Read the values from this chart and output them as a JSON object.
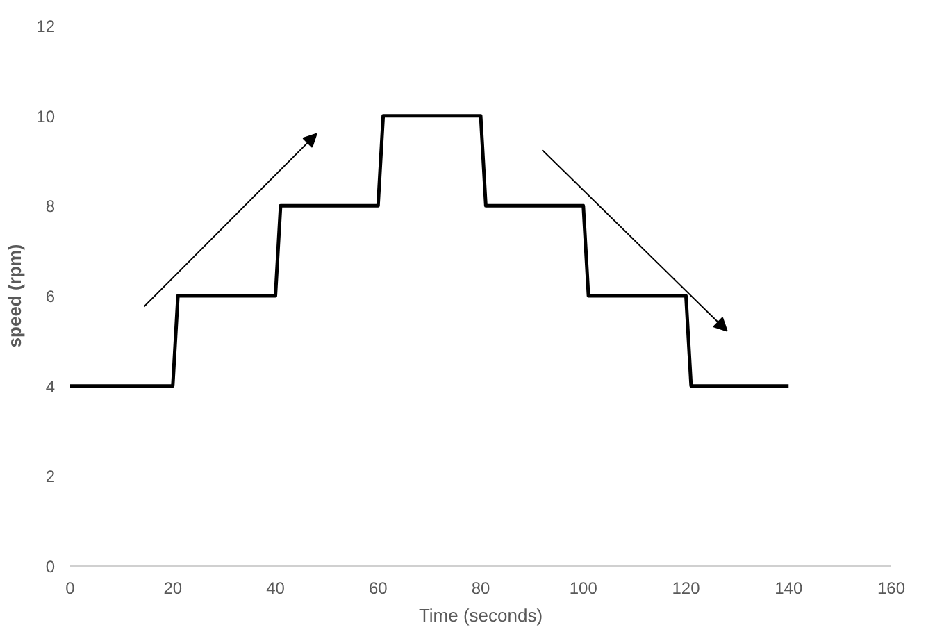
{
  "chart_data": {
    "type": "line",
    "xlabel": "Time (seconds)",
    "ylabel": "speed (rpm)",
    "x": [
      0,
      20,
      21,
      40,
      41,
      60,
      61,
      80,
      81,
      100,
      101,
      120,
      121,
      140
    ],
    "series": [
      {
        "color": "#000000",
        "values": [
          4,
          4,
          6,
          6,
          8,
          8,
          10,
          10,
          8,
          8,
          6,
          6,
          4,
          4
        ]
      }
    ],
    "xlim": [
      0,
      160
    ],
    "xticks": [
      0,
      20,
      40,
      60,
      80,
      100,
      120,
      140,
      160
    ],
    "ylim": [
      0,
      12
    ],
    "yticks": [
      0,
      2,
      4,
      6,
      8,
      10,
      12
    ],
    "grid": false,
    "marker": "none",
    "line_style": "solid"
  }
}
